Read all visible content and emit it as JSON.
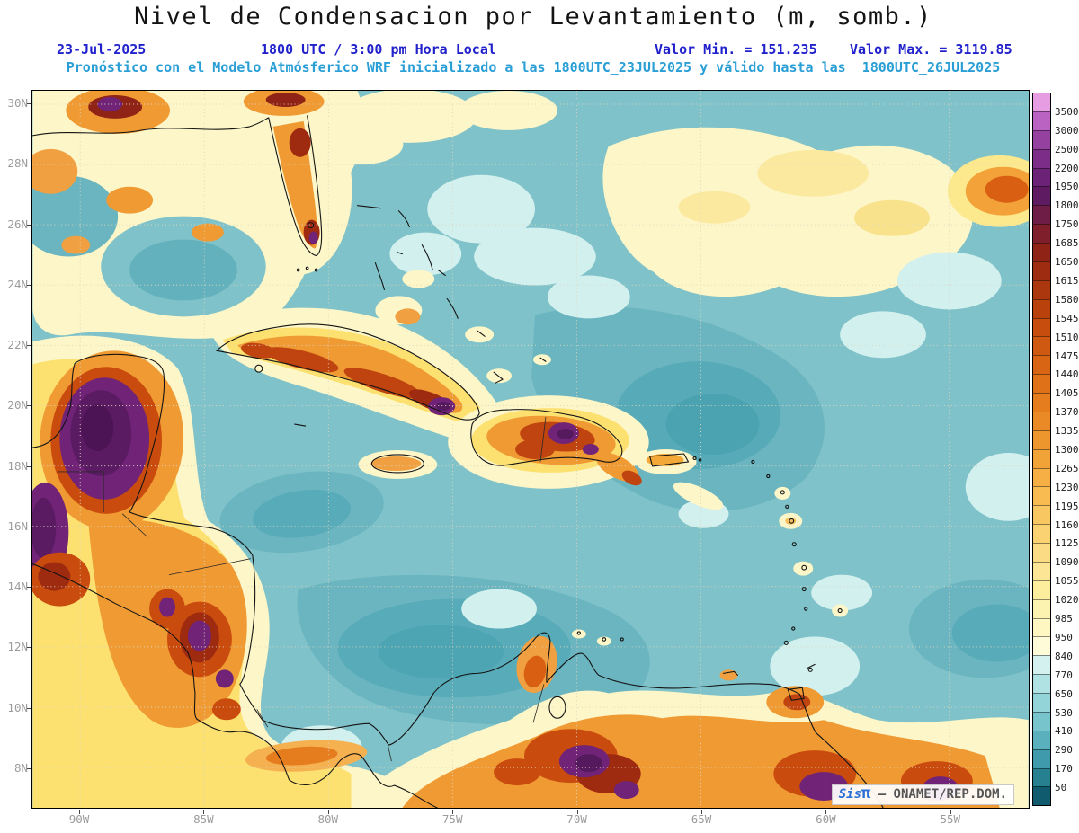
{
  "header": {
    "title": "Nivel de Condensacion por Levantamiento (m, somb.)",
    "date": "23-Jul-2025",
    "local_time": "1800 UTC / 3:00 pm Hora Local",
    "min_label": "Valor Min. = 151.235",
    "max_label": "Valor Max. = 3119.85",
    "forecast_line": "Pronóstico con el Modelo Atmósferico WRF inicializado a las 1800UTC_23JUL2025 y válido hasta las  1800UTC_26JUL2025"
  },
  "map": {
    "lat_labels": [
      "30N",
      "28N",
      "26N",
      "24N",
      "22N",
      "20N",
      "18N",
      "16N",
      "14N",
      "12N",
      "10N",
      "8N"
    ],
    "lon_labels": [
      "90W",
      "85W",
      "80W",
      "75W",
      "70W",
      "65W",
      "60W",
      "55W"
    ],
    "credit": {
      "prefix": "Sis",
      "pi": "π",
      "suffix": "– ONAMET/REP.DOM."
    }
  },
  "colorbar": {
    "labels": [
      "3500",
      "3000",
      "2500",
      "2200",
      "1950",
      "1800",
      "1750",
      "1685",
      "1650",
      "1615",
      "1580",
      "1545",
      "1510",
      "1475",
      "1440",
      "1405",
      "1370",
      "1335",
      "1300",
      "1265",
      "1230",
      "1195",
      "1160",
      "1125",
      "1090",
      "1055",
      "1020",
      "985",
      "950",
      "840",
      "770",
      "650",
      "530",
      "410",
      "290",
      "170",
      "50"
    ],
    "colors": [
      "#e79de2",
      "#bb63c2",
      "#94419f",
      "#7b2d88",
      "#6c2377",
      "#5e1b61",
      "#6e1e46",
      "#7f1f2c",
      "#8f2316",
      "#9d2c10",
      "#ab370e",
      "#b9420c",
      "#c64d0e",
      "#cf5910",
      "#d86514",
      "#df7118",
      "#e57d1e",
      "#ea8a26",
      "#ee962e",
      "#f2a338",
      "#f5af44",
      "#f7bb52",
      "#f9c762",
      "#fad272",
      "#fbdc84",
      "#fce696",
      "#fdee9e",
      "#fdf3b0",
      "#fef7c2",
      "#fefbd8",
      "#d5f1ef",
      "#b0e2e3",
      "#93d4d9",
      "#77c4cc",
      "#5ab1bd",
      "#3f9aab",
      "#27808f",
      "#105c6e"
    ]
  }
}
